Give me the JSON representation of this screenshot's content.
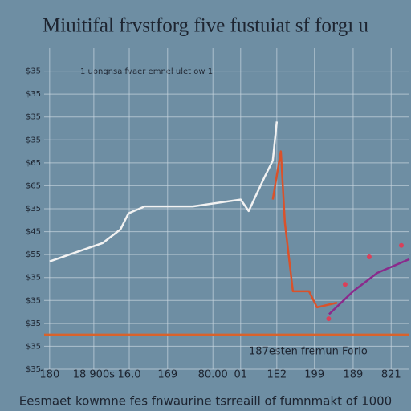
{
  "chart_data": {
    "type": "line",
    "title": "Miuitifal frvstforg five fustuiat sf forgı u",
    "caption": "Eesmaet kowmne fes fnwaurine tsrreaill of fumnmakt of 1000",
    "annotations": [
      "1 uongnsa fvaer emnel ulet ow 1",
      "187esten fremun Forlo"
    ],
    "xlim": [
      0,
      100
    ],
    "ylim": [
      0,
      14
    ],
    "xticks": [
      {
        "value": 1.5,
        "label": "180"
      },
      {
        "value": 13.6,
        "label": "18 900s"
      },
      {
        "value": 23.3,
        "label": "16.0"
      },
      {
        "value": 33.8,
        "label": "169"
      },
      {
        "value": 46.2,
        "label": "80.00"
      },
      {
        "value": 53.8,
        "label": "01"
      },
      {
        "value": 63.7,
        "label": "1E2"
      },
      {
        "value": 74,
        "label": "199"
      },
      {
        "value": 84.6,
        "label": "189"
      },
      {
        "value": 95,
        "label": "821"
      }
    ],
    "yticks": [
      {
        "value": 0,
        "label": "$35"
      },
      {
        "value": 1,
        "label": "$35"
      },
      {
        "value": 2,
        "label": "$35"
      },
      {
        "value": 3,
        "label": "$35"
      },
      {
        "value": 4,
        "label": "$35"
      },
      {
        "value": 5,
        "label": "$55"
      },
      {
        "value": 6,
        "label": "$45"
      },
      {
        "value": 7,
        "label": "$35"
      },
      {
        "value": 8,
        "label": "$65"
      },
      {
        "value": 9,
        "label": "$65"
      },
      {
        "value": 10,
        "label": "$35"
      },
      {
        "value": 11,
        "label": "$35"
      },
      {
        "value": 12,
        "label": "$35"
      },
      {
        "value": 13,
        "label": "$35"
      }
    ],
    "grid": true,
    "hline": {
      "value": 1.5,
      "color": "#d9622b"
    },
    "series": [
      {
        "color": "#f2f2f2",
        "style": "line",
        "x": [
          1.5,
          16.0,
          20.9,
          23.1,
          27.5,
          40.7,
          53.8,
          56.0,
          60.4,
          62.6,
          63.7
        ],
        "values": [
          4.7,
          5.5,
          6.1,
          6.8,
          7.1,
          7.1,
          7.4,
          6.9,
          8.4,
          9.1,
          10.8
        ]
      },
      {
        "color": "#d9522b",
        "style": "line",
        "x": [
          62.6,
          64.8,
          65.9,
          68.1,
          72.5,
          74.7,
          80.2
        ],
        "values": [
          7.4,
          9.5,
          6.4,
          3.4,
          3.4,
          2.7,
          2.9
        ]
      },
      {
        "color": "#8a2a8c",
        "style": "line",
        "x": [
          78.0,
          84.6,
          91.2,
          100
        ],
        "values": [
          2.4,
          3.4,
          4.2,
          4.8
        ]
      },
      {
        "color": "#d9405a",
        "style": "dots",
        "x": [
          77.9,
          82.4,
          89.0,
          97.8
        ],
        "values": [
          2.2,
          3.7,
          4.9,
          5.4
        ]
      }
    ]
  }
}
